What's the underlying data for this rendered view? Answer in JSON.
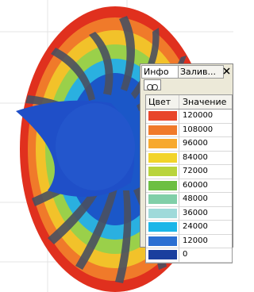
{
  "panel": {
    "tabs": [
      "Инфо",
      "Залив..."
    ]
  },
  "table": {
    "headers": [
      "Цвет",
      "Значение"
    ],
    "rows": [
      {
        "color": "#e8452a",
        "value": "120000"
      },
      {
        "color": "#f07a2a",
        "value": "108000"
      },
      {
        "color": "#f7a92e",
        "value": "96000"
      },
      {
        "color": "#f2d42a",
        "value": "84000"
      },
      {
        "color": "#b9d43c",
        "value": "72000"
      },
      {
        "color": "#6cbf42",
        "value": "60000"
      },
      {
        "color": "#80cfa8",
        "value": "48000"
      },
      {
        "color": "#9fdada",
        "value": "36000"
      },
      {
        "color": "#1bb6e8",
        "value": "24000"
      },
      {
        "color": "#2b6fd2",
        "value": "12000"
      },
      {
        "color": "#1a3f9e",
        "value": "0"
      }
    ]
  }
}
